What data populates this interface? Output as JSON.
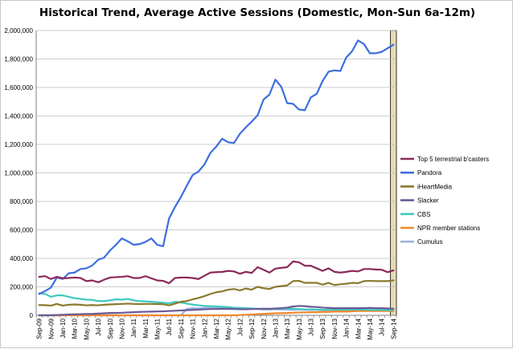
{
  "chart_data": {
    "type": "line",
    "title": "Historical Trend, Average Active Sessions (Domestic, Mon-Sun 6a-12m)",
    "xlabel": "",
    "ylabel": "",
    "ylim": [
      0,
      2000000
    ],
    "yticks": [
      0,
      200000,
      400000,
      600000,
      800000,
      1000000,
      1200000,
      1400000,
      1600000,
      1800000,
      2000000
    ],
    "ytick_labels": [
      "0",
      "200,000",
      "400,000",
      "600,000",
      "800,000",
      "1,000,000",
      "1,200,000",
      "1,400,000",
      "1,600,000",
      "1,800,000",
      "2,000,000"
    ],
    "x_categories": [
      "Sep-09",
      "Oct-09",
      "Nov-09",
      "Dec-09",
      "Jan-10",
      "Feb-10",
      "Mar-10",
      "Apr-10",
      "May-10",
      "Jun-10",
      "Jul-10",
      "Aug-10",
      "Sep-10",
      "Oct-10",
      "Nov-10",
      "Dec-10",
      "Jan-11",
      "Feb-11",
      "Mar-11",
      "Apr-11",
      "May-11",
      "Jun-11",
      "Jul-11",
      "Aug-11",
      "Sep-11",
      "Oct-11",
      "Nov-11",
      "Dec-11",
      "Jan-12",
      "Feb-12",
      "Mar-12",
      "Apr-12",
      "May-12",
      "Jun-12",
      "Jul-12",
      "Aug-12",
      "Sep-12",
      "Oct-12",
      "Nov-12",
      "Dec-12",
      "Jan-13",
      "Feb-13",
      "Mar-13",
      "Apr-13",
      "May-13",
      "Jun-13",
      "Jul-13",
      "Aug-13",
      "Sep-13",
      "Oct-13",
      "Nov-13",
      "Dec-13",
      "Jan-14",
      "Feb-14",
      "Mar-14",
      "Apr-14",
      "May-14",
      "Jun-14",
      "Jul-14",
      "Aug-14",
      "Sep-14"
    ],
    "xtick_labels": [
      "Sep-09",
      "Nov-09",
      "Jan-10",
      "Mar-10",
      "May-10",
      "Jul-10",
      "Sep-10",
      "Nov-10",
      "Jan-11",
      "Mar-11",
      "May-11",
      "Jul-11",
      "Sep-11",
      "Nov-11",
      "Jan-12",
      "Mar-12",
      "May-12",
      "Jul-12",
      "Sep-12",
      "Nov-12",
      "Jan-13",
      "Mar-13",
      "May-13",
      "Jul-13",
      "Sep-13",
      "Nov-13",
      "Jan-14",
      "Mar-14",
      "May-14",
      "Jul-14",
      "Sep-14"
    ],
    "highlight_category": "Sep-14",
    "highlight_color": "#e8dcb4",
    "legend_position": "right",
    "grid": "horizontal",
    "series": [
      {
        "name": "Top 5 terrestrial b'casters",
        "color": "#8b2a5a",
        "values": [
          270000,
          275000,
          255000,
          270000,
          260000,
          262000,
          265000,
          262000,
          240000,
          245000,
          232000,
          250000,
          265000,
          268000,
          270000,
          275000,
          262000,
          262000,
          275000,
          260000,
          245000,
          242000,
          225000,
          262000,
          265000,
          265000,
          262000,
          255000,
          278000,
          300000,
          303000,
          305000,
          312000,
          308000,
          292000,
          305000,
          298000,
          338000,
          320000,
          300000,
          328000,
          333000,
          338000,
          378000,
          372000,
          348000,
          348000,
          330000,
          312000,
          330000,
          305000,
          300000,
          305000,
          312000,
          308000,
          325000,
          325000,
          322000,
          320000,
          303000,
          315000
        ]
      },
      {
        "name": "Pandora",
        "color": "#3d6ee0",
        "values": [
          150000,
          170000,
          195000,
          265000,
          255000,
          295000,
          300000,
          325000,
          330000,
          350000,
          390000,
          405000,
          455000,
          495000,
          540000,
          520000,
          495000,
          500000,
          515000,
          540000,
          495000,
          485000,
          680000,
          760000,
          830000,
          910000,
          985000,
          1010000,
          1060000,
          1140000,
          1185000,
          1240000,
          1215000,
          1210000,
          1275000,
          1320000,
          1360000,
          1405000,
          1515000,
          1550000,
          1655000,
          1605000,
          1490000,
          1485000,
          1445000,
          1440000,
          1530000,
          1555000,
          1645000,
          1710000,
          1720000,
          1715000,
          1810000,
          1855000,
          1930000,
          1905000,
          1840000,
          1840000,
          1850000,
          1875000,
          1900000
        ]
      },
      {
        "name": "iHeartMedia",
        "color": "#8a7a2e",
        "values": [
          72000,
          71000,
          68000,
          80000,
          68000,
          74000,
          76000,
          74000,
          70000,
          72000,
          70000,
          74000,
          76000,
          78000,
          80000,
          82000,
          80000,
          79000,
          80000,
          80000,
          79000,
          78000,
          70000,
          82000,
          95000,
          100000,
          112000,
          122000,
          135000,
          150000,
          162000,
          168000,
          180000,
          185000,
          175000,
          188000,
          180000,
          200000,
          190000,
          185000,
          200000,
          205000,
          210000,
          240000,
          242000,
          228000,
          228000,
          228000,
          215000,
          228000,
          212000,
          218000,
          222000,
          228000,
          225000,
          240000,
          242000,
          240000,
          240000,
          240000,
          245000
        ]
      },
      {
        "name": "Slacker",
        "color": "#6a5a96",
        "values": [
          0,
          0,
          0,
          2000,
          4000,
          6000,
          7000,
          8000,
          9000,
          10000,
          12000,
          14000,
          16000,
          17000,
          18000,
          20000,
          22000,
          24000,
          25000,
          26000,
          27000,
          28000,
          30000,
          32000,
          34000,
          36000,
          38000,
          40000,
          42000,
          44000,
          44000,
          45000,
          45000,
          44000,
          43000,
          42000,
          44000,
          45000,
          46000,
          46000,
          48000,
          50000,
          54000,
          62000,
          66000,
          64000,
          60000,
          58000,
          54000,
          52000,
          50000,
          50000,
          50000,
          50000,
          50000,
          50000,
          52000,
          50000,
          50000,
          48000,
          46000
        ]
      },
      {
        "name": "CBS",
        "color": "#40c8c0",
        "values": [
          155000,
          150000,
          130000,
          140000,
          140000,
          130000,
          120000,
          115000,
          110000,
          108000,
          100000,
          100000,
          105000,
          112000,
          110000,
          115000,
          105000,
          100000,
          98000,
          95000,
          92000,
          88000,
          85000,
          95000,
          90000,
          82000,
          75000,
          70000,
          66000,
          64000,
          62000,
          60000,
          58000,
          54000,
          52000,
          50000,
          48000,
          46000,
          45000,
          44000,
          46000,
          48000,
          48000,
          46000,
          44000,
          42000,
          42000,
          40000,
          38000,
          40000,
          40000,
          40000,
          40000,
          40000,
          40000,
          40000,
          38000,
          38000,
          38000,
          36000,
          38000
        ]
      },
      {
        "name": "NPR member stations",
        "color": "#f08a2c",
        "values": [
          0,
          0,
          0,
          0,
          0,
          0,
          0,
          0,
          0,
          0,
          0,
          0,
          0,
          0,
          0,
          0,
          0,
          0,
          0,
          0,
          0,
          0,
          0,
          0,
          0,
          0,
          0,
          0,
          0,
          0,
          0,
          0,
          0,
          0,
          2000,
          4000,
          6000,
          8000,
          10000,
          12000,
          14000,
          15000,
          16000,
          18000,
          20000,
          20000,
          22000,
          22000,
          24000,
          24000,
          26000,
          26000,
          26000,
          28000,
          30000,
          30000,
          30000,
          30000,
          30000,
          30000,
          30000
        ]
      },
      {
        "name": "Cumulus",
        "color": "#9ab4e0",
        "values": [
          0,
          0,
          0,
          0,
          0,
          0,
          0,
          0,
          0,
          0,
          0,
          0,
          0,
          0,
          0,
          0,
          0,
          0,
          0,
          0,
          0,
          0,
          0,
          0,
          0,
          45000,
          50000,
          48000,
          52000,
          52000,
          50000,
          50000,
          48000,
          45000,
          42000,
          44000,
          46000,
          44000,
          40000,
          40000,
          42000,
          40000,
          40000,
          38000,
          40000,
          38000,
          38000,
          38000,
          36000,
          36000,
          36000,
          36000,
          36000,
          35000,
          35000,
          35000,
          34000,
          35000,
          35000,
          34000,
          34000
        ]
      }
    ]
  }
}
